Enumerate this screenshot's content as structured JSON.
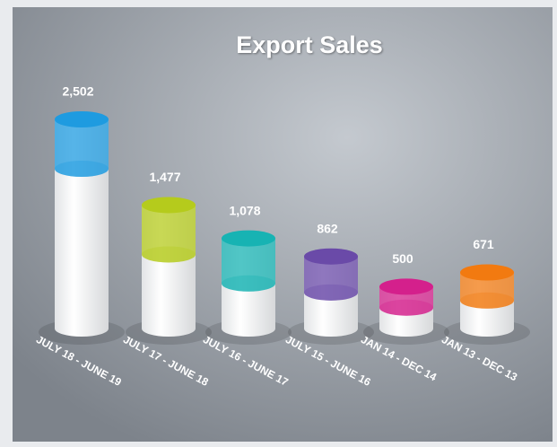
{
  "chart_data": {
    "type": "bar",
    "title": "Export Sales",
    "categories": [
      "JULY 18 - JUNE 19",
      "JULY 17 - JUNE 18",
      "JULY 16 - JUNE 17",
      "JULY 15 - JUNE 16",
      "JAN 14 - DEC 14",
      "JAN 13 - DEC 13"
    ],
    "values": [
      2502,
      1477,
      1078,
      862,
      500,
      671
    ],
    "value_labels": [
      "2,502",
      "1,477",
      "1,078",
      "862",
      "500",
      "671"
    ],
    "colors": [
      "#1e9be0",
      "#b5cb1c",
      "#17b3b3",
      "#6a4aa8",
      "#d4208c",
      "#f27a10"
    ]
  }
}
